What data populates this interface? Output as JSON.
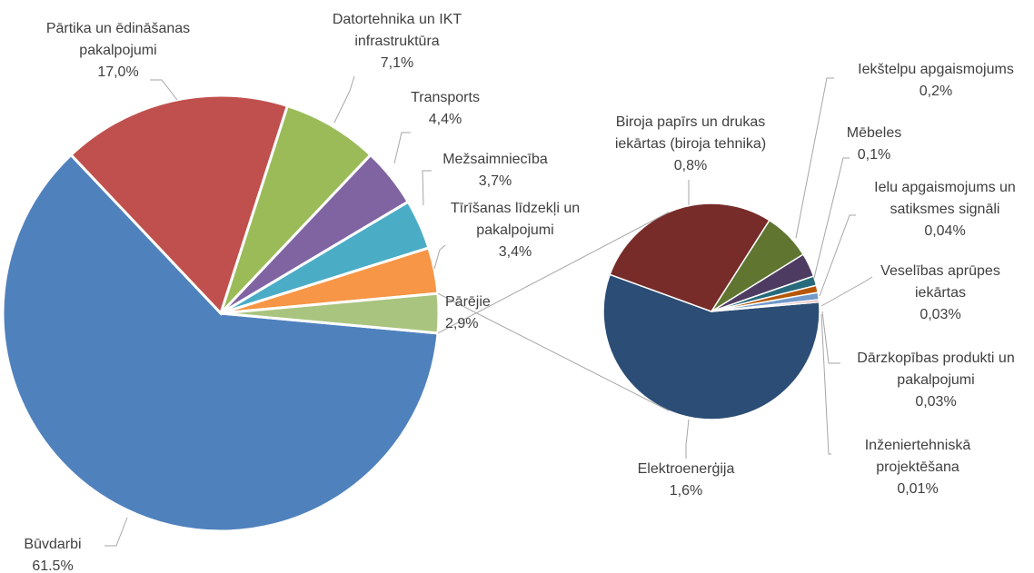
{
  "chart_data": [
    {
      "type": "pie",
      "categories": [
        "Būvdarbi",
        "Pārtika un ēdināšanas pakalpojumi",
        "Datortehnika un IKT infrastruktūra",
        "Transports",
        "Mežsaimniecība",
        "Tīrīšanas līdzekļi un pakalpojumi",
        "Pārējie"
      ],
      "values": [
        61.5,
        17.0,
        7.1,
        4.4,
        3.7,
        3.4,
        2.9
      ],
      "value_labels": [
        "61.5%",
        "17,0%",
        "7,1%",
        "4,4%",
        "3,7%",
        "3,4%",
        "2,9%"
      ],
      "colors": [
        "#4f81bd",
        "#c0504d",
        "#9bbb59",
        "#8064a2",
        "#4bacc6",
        "#f79646",
        "#a9c47f"
      ]
    },
    {
      "type": "pie",
      "categories": [
        "Elektroenerģija",
        "Biroja papīrs un drukas iekārtas (biroja tehnika)",
        "Iekštelpu apgaismojums",
        "Mēbeles",
        "Ielu apgaismojums un satiksmes signāli",
        "Veselības aprūpes iekārtas",
        "Dārzkopības produkti un pakalpojumi",
        "Inženiertehniskā projektēšana"
      ],
      "values": [
        1.6,
        0.8,
        0.2,
        0.1,
        0.04,
        0.03,
        0.03,
        0.01
      ],
      "value_labels": [
        "1,6%",
        "0,8%",
        "0,2%",
        "0,1%",
        "0,04%",
        "0,03%",
        "0,03%",
        "0,01%"
      ],
      "colors": [
        "#2c4d75",
        "#772c2a",
        "#5f7530",
        "#4d3b62",
        "#276a7c",
        "#b65708",
        "#729aca",
        "#d99694"
      ]
    }
  ]
}
